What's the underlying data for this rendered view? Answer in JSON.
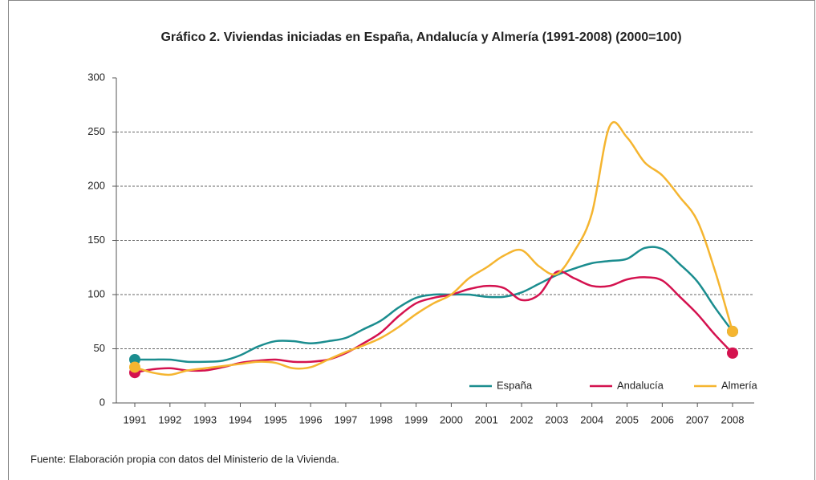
{
  "chart_data": {
    "type": "line",
    "title": "Gráfico 2. Viviendas iniciadas en España, Andalucía y Almería (1991-2008) (2000=100)",
    "source": "Fuente: Elaboración propia con datos del Ministerio de la Vivienda.",
    "categories": [
      "1991",
      null,
      "1992",
      null,
      "1993",
      null,
      "1994",
      null,
      "1995",
      null,
      "1996",
      null,
      "1997",
      null,
      "1998",
      null,
      "1999",
      null,
      "2000",
      null,
      "2001",
      null,
      "2002",
      null,
      "2003",
      null,
      "2004",
      null,
      "2005",
      null,
      "2006",
      null,
      "2007",
      null,
      "2008"
    ],
    "ylim": [
      0,
      300
    ],
    "yticks": [
      0,
      50,
      100,
      150,
      200,
      250,
      300
    ],
    "grid": true,
    "legend": "bottom-right",
    "series": [
      {
        "name": "España",
        "color": "#1b8d8f",
        "values": [
          40,
          40,
          40,
          38,
          38,
          39,
          44,
          52,
          57,
          57,
          55,
          57,
          60,
          68,
          76,
          88,
          97,
          100,
          100,
          100,
          98,
          98,
          102,
          110,
          118,
          124,
          129,
          131,
          133,
          143,
          142,
          128,
          112,
          88,
          66
        ]
      },
      {
        "name": "Andalucía",
        "color": "#d4124f",
        "values": [
          28,
          31,
          32,
          30,
          30,
          33,
          37,
          39,
          40,
          38,
          38,
          40,
          46,
          55,
          65,
          80,
          92,
          97,
          100,
          105,
          108,
          106,
          95,
          100,
          121,
          115,
          108,
          108,
          114,
          116,
          113,
          98,
          82,
          63,
          46
        ]
      },
      {
        "name": "Almería",
        "color": "#f5b530",
        "values": [
          33,
          28,
          26,
          30,
          32,
          34,
          36,
          38,
          37,
          32,
          33,
          40,
          47,
          53,
          60,
          70,
          82,
          92,
          100,
          115,
          125,
          136,
          141,
          126,
          119,
          140,
          175,
          255,
          245,
          222,
          210,
          190,
          168,
          122,
          66
        ]
      }
    ]
  }
}
